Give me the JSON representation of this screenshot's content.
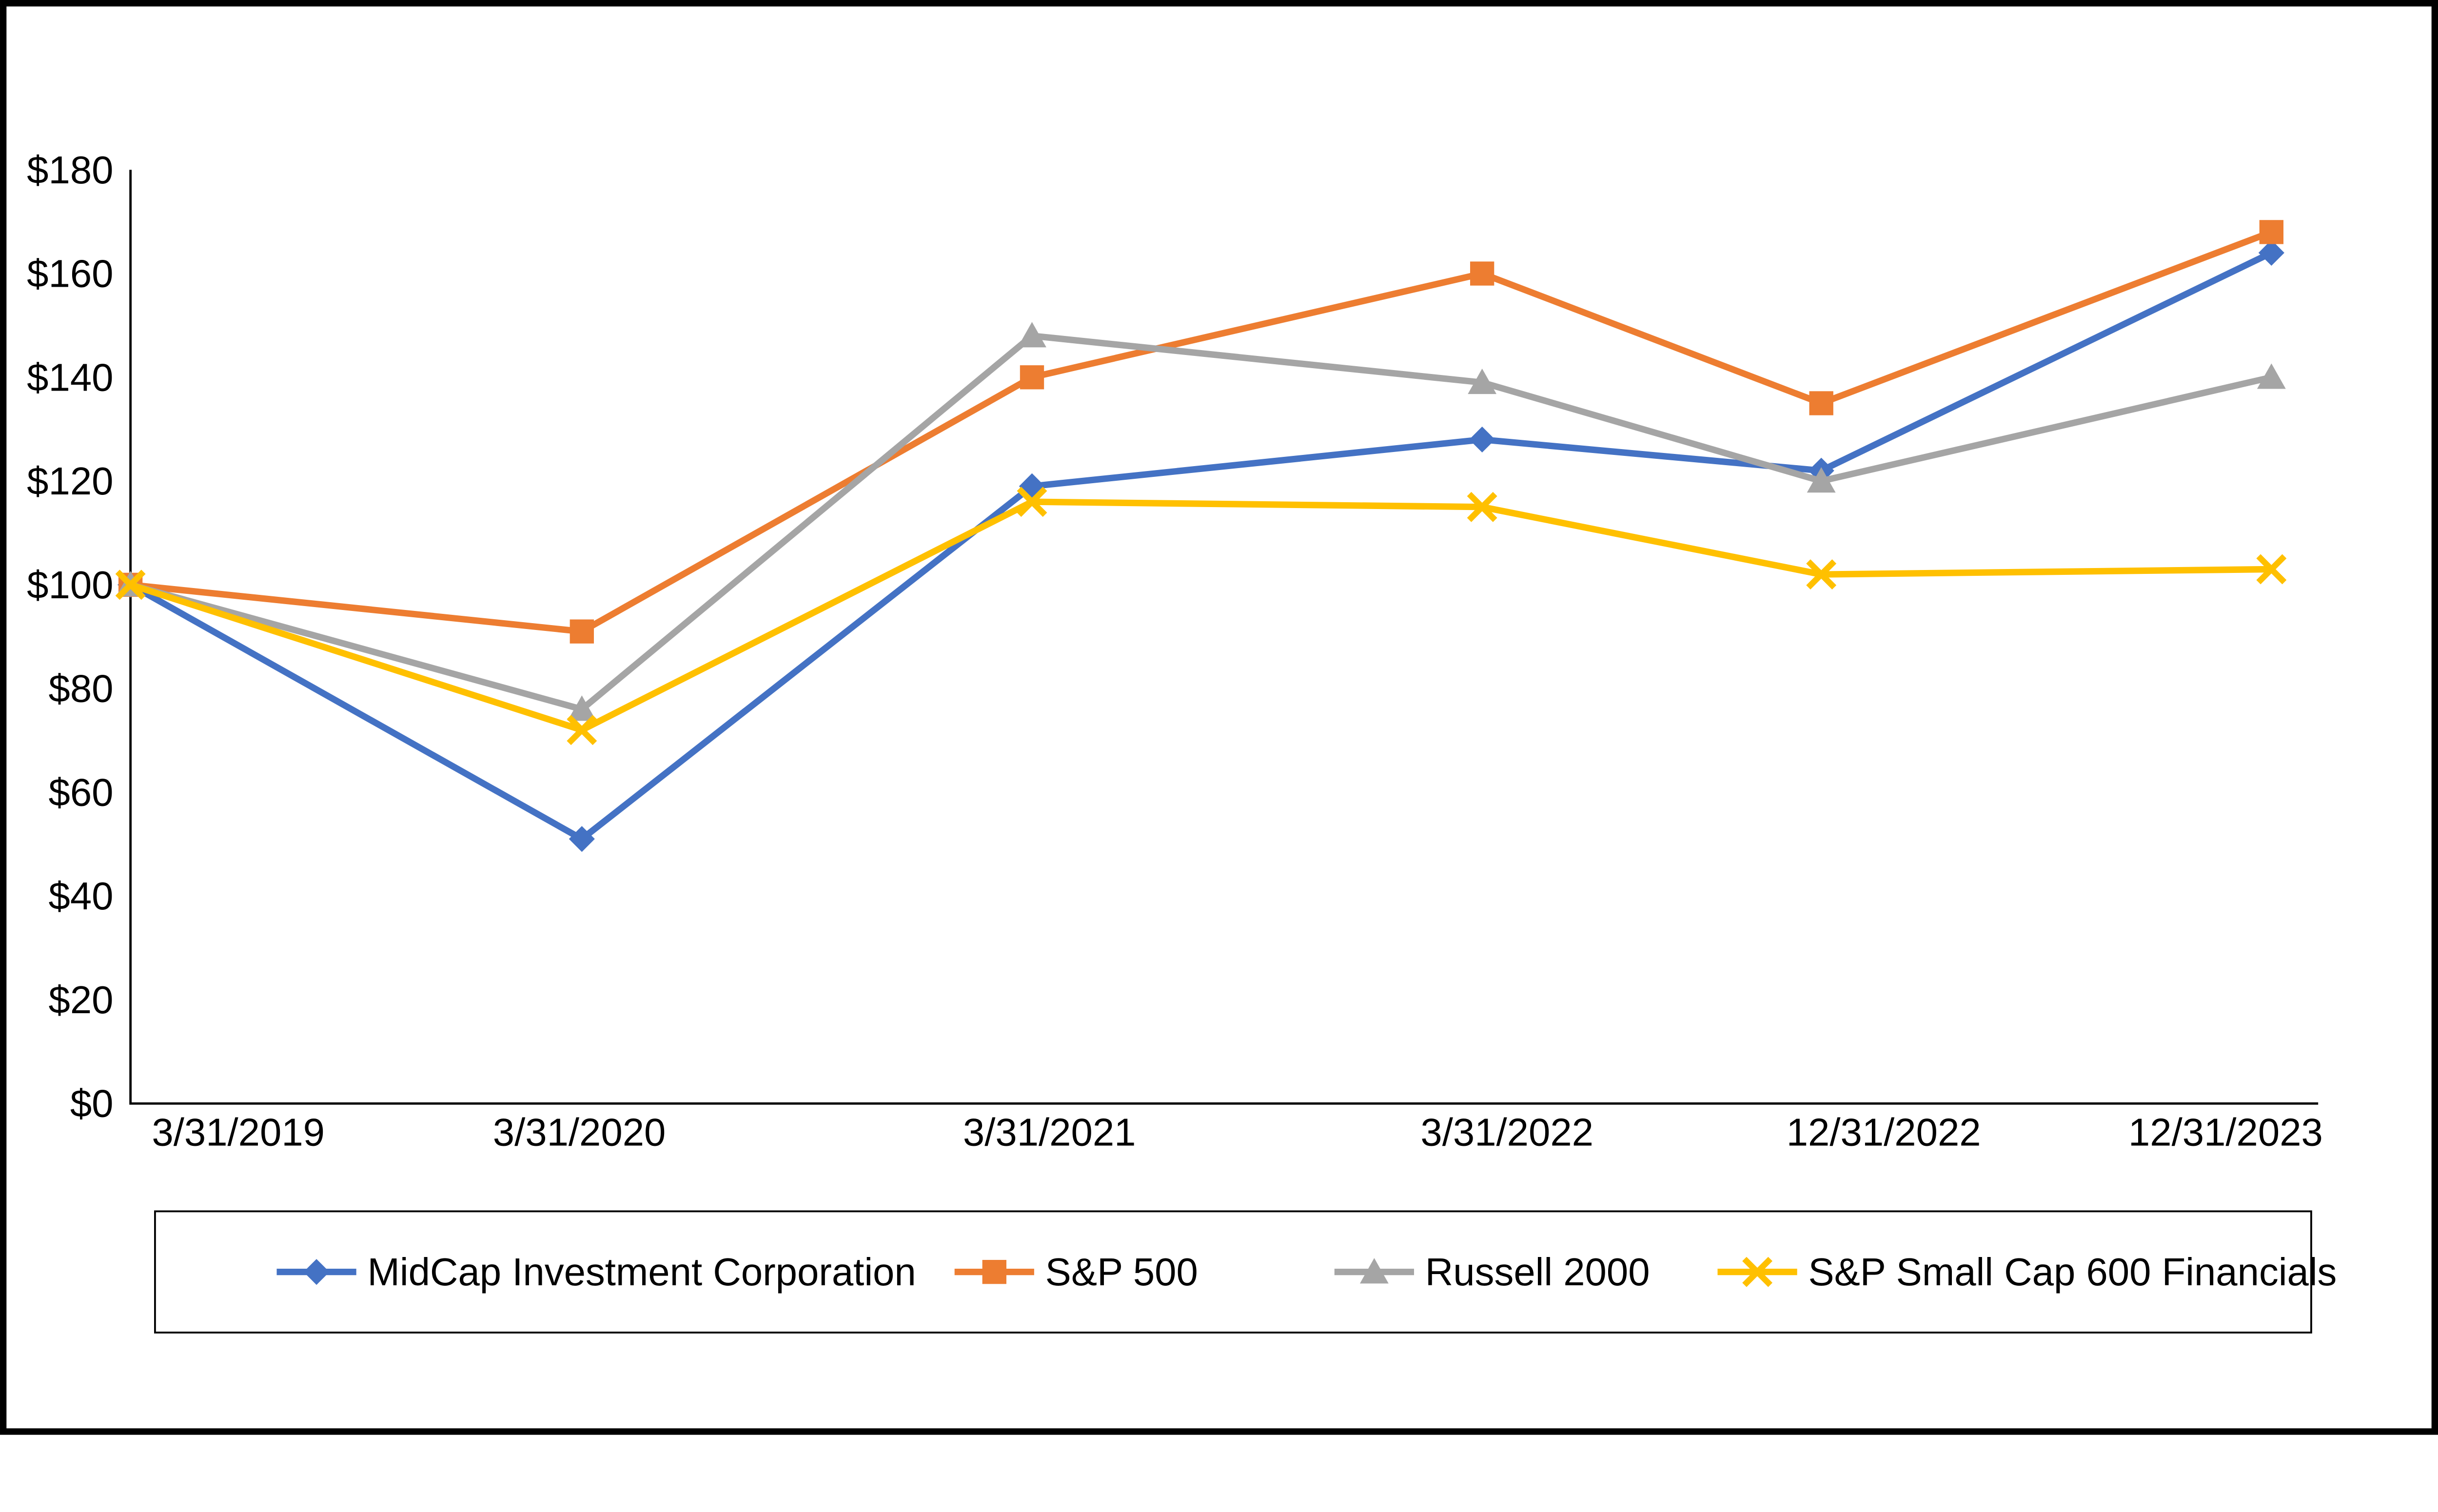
{
  "chart_data": {
    "type": "line",
    "title": "",
    "xlabel": "",
    "ylabel": "",
    "x_labels": [
      "3/31/2019",
      "3/31/2020",
      "3/31/2021",
      "3/31/2022",
      "12/31/2022",
      "12/31/2023"
    ],
    "y_ticks": [
      "$0",
      "$20",
      "$40",
      "$60",
      "$80",
      "$100",
      "$120",
      "$140",
      "$160",
      "$180"
    ],
    "ylim": [
      0,
      180
    ],
    "y_step": 20,
    "grid": false,
    "legend_position": "bottom",
    "axis_color": "#000000",
    "frame_color": "#000000",
    "series": [
      {
        "name": "MidCap Investment Corporation",
        "color": "#4472C4",
        "marker": "diamond",
        "values": [
          100,
          51,
          119,
          128,
          122,
          164
        ]
      },
      {
        "name": "S&P 500",
        "color": "#ED7D31",
        "marker": "square",
        "values": [
          100,
          91,
          140,
          160,
          135,
          168
        ]
      },
      {
        "name": "Russell 2000",
        "color": "#A5A5A5",
        "marker": "triangle",
        "values": [
          100,
          76,
          148,
          139,
          120,
          140
        ]
      },
      {
        "name": "S&P Small Cap 600 Financials",
        "color": "#FFC000",
        "marker": "x",
        "values": [
          100,
          72,
          116,
          115,
          102,
          103
        ]
      }
    ]
  }
}
